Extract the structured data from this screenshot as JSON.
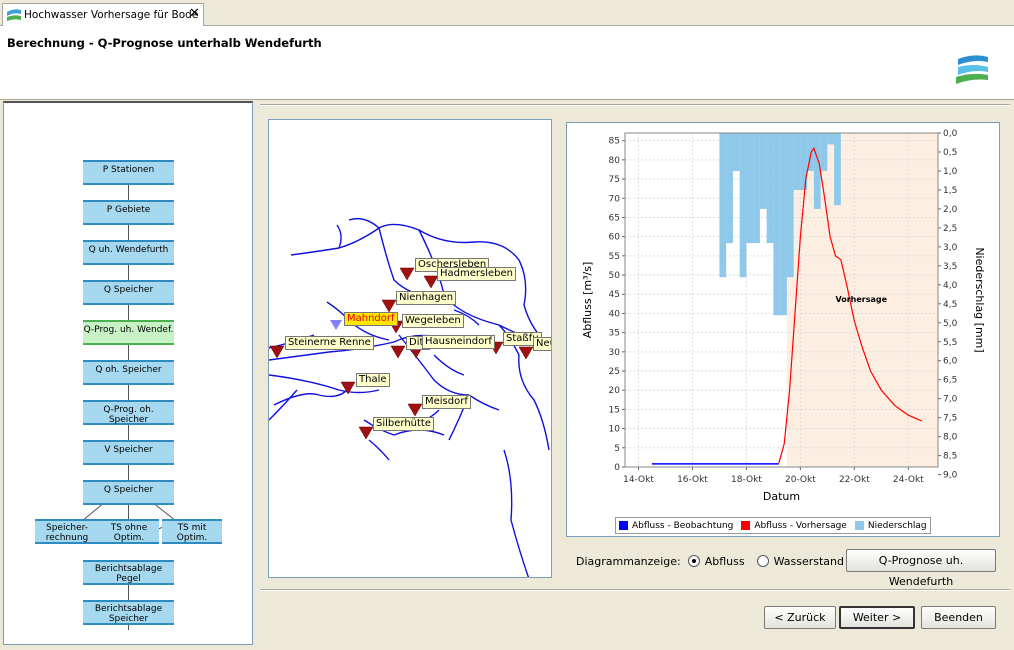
{
  "tab": {
    "label": "Hochwasser Vorhersage für Bode",
    "close": "✕",
    "icon": "app-logo-icon"
  },
  "header": {
    "title": "Berechnung - Q-Prognose unterhalb Wendefurth",
    "logo_icon": "river-logo-icon"
  },
  "workflow": {
    "steps": [
      "P Stationen",
      "P Gebiete",
      "Q uh. Wendefurth",
      "Q Speicher",
      "Q-Prog. uh. Wendef.",
      "Q oh. Speicher",
      "Q-Prog. oh. Speicher",
      "V Speicher",
      "Q Speicher"
    ],
    "active_step": "Q-Prog. uh. Wendef.",
    "branches": [
      {
        "line1": "Speicher-",
        "line2": "rechnung"
      },
      {
        "line1": "TS ohne",
        "line2": "Optim."
      },
      {
        "line1": "TS mit",
        "line2": "Optim."
      }
    ],
    "archives": [
      {
        "line1": "Berichtsablage",
        "line2": "Pegel"
      },
      {
        "line1": "Berichtsablage",
        "line2": "Speicher"
      }
    ]
  },
  "map": {
    "stations": [
      "Oschersleben",
      "Hadmersleben",
      "Nienhagen",
      "Mahndorf",
      "Wegeleben",
      "Steinerne Renne",
      "Ditf",
      "Hausneindorf",
      "Staßfu",
      "Neu",
      "Thale",
      "Meisdorf",
      "Silberhütte"
    ],
    "selected_station": "Mahndorf",
    "colors": {
      "river": "#1010e0",
      "station_marker": "#a01010",
      "selected_marker": "#8080ff"
    }
  },
  "chart_data": {
    "type": "bar+line",
    "xlabel": "Datum",
    "ylabel": "Abfluss [m³/s]",
    "y2label": "Niederschlag [mm]",
    "x_ticks": [
      "14-Okt",
      "16-Okt",
      "18-Okt",
      "20-Okt",
      "22-Okt",
      "24-Okt"
    ],
    "ylim": [
      0,
      87
    ],
    "y_ticks": [
      0,
      5,
      10,
      15,
      20,
      25,
      30,
      35,
      40,
      45,
      50,
      55,
      60,
      65,
      70,
      75,
      80,
      85
    ],
    "y2lim": [
      0,
      8.8
    ],
    "y2_ticks": [
      "0,0",
      "0,5",
      "1,0",
      "1,5",
      "2,0",
      "2,5",
      "3,0",
      "3,5",
      "4,0",
      "4,5",
      "5,0",
      "5,5",
      "6,0",
      "6,5",
      "7,0",
      "7,5",
      "8,0",
      "8,5",
      "9,0"
    ],
    "forecast_label": "Vorhersage",
    "forecast_start_day": 19.5,
    "x_range_days": [
      13.5,
      25.1
    ],
    "series": [
      {
        "name": "Abfluss - Beobachtung",
        "color": "#0000ff",
        "x": [
          14.5,
          15.5,
          16.5,
          17.5,
          18.5,
          19.2
        ],
        "y": [
          0.8,
          0.8,
          0.8,
          0.8,
          0.8,
          0.8
        ]
      },
      {
        "name": "Abfluss - Vorhersage",
        "color": "#ff0000",
        "x": [
          19.2,
          19.4,
          19.6,
          19.8,
          20.0,
          20.2,
          20.4,
          20.5,
          20.7,
          20.9,
          21.1,
          21.3,
          21.5,
          21.7,
          22.0,
          22.3,
          22.6,
          23.0,
          23.5,
          24.0,
          24.5
        ],
        "y": [
          1,
          6,
          20,
          40,
          60,
          75,
          82,
          83,
          79,
          70,
          60,
          55,
          54,
          48,
          38,
          31,
          25,
          20,
          16,
          13.5,
          12
        ]
      },
      {
        "name": "Niederschlag",
        "color": "#8ec8ea",
        "bars_x_start": [
          17.0,
          17.25,
          17.5,
          17.75,
          18.0,
          18.25,
          18.5,
          18.75,
          19.0,
          19.25,
          19.5,
          19.75,
          20.0,
          20.25,
          20.5,
          20.75,
          21.0,
          21.25
        ],
        "bar_width_days": 0.25,
        "depth_mm": [
          3.8,
          2.9,
          1.0,
          3.8,
          2.9,
          2.9,
          2.0,
          2.9,
          4.8,
          4.8,
          3.8,
          1.5,
          1.5,
          1.0,
          2.0,
          1.0,
          0.3,
          1.9
        ]
      }
    ],
    "legend": [
      "Abfluss - Beobachtung",
      "Abfluss - Vorhersage",
      "Niederschlag"
    ],
    "legend_position": "bottom"
  },
  "controls": {
    "diagram_label": "Diagrammanzeige:",
    "radio_abfluss": "Abfluss",
    "radio_wasserstand": "Wasserstand",
    "selected": "Abfluss",
    "qprognose_button": "Q-Prognose uh. Wendefurth"
  },
  "nav": {
    "back": "< Zurück",
    "next": "Weiter >",
    "finish": "Beenden"
  }
}
